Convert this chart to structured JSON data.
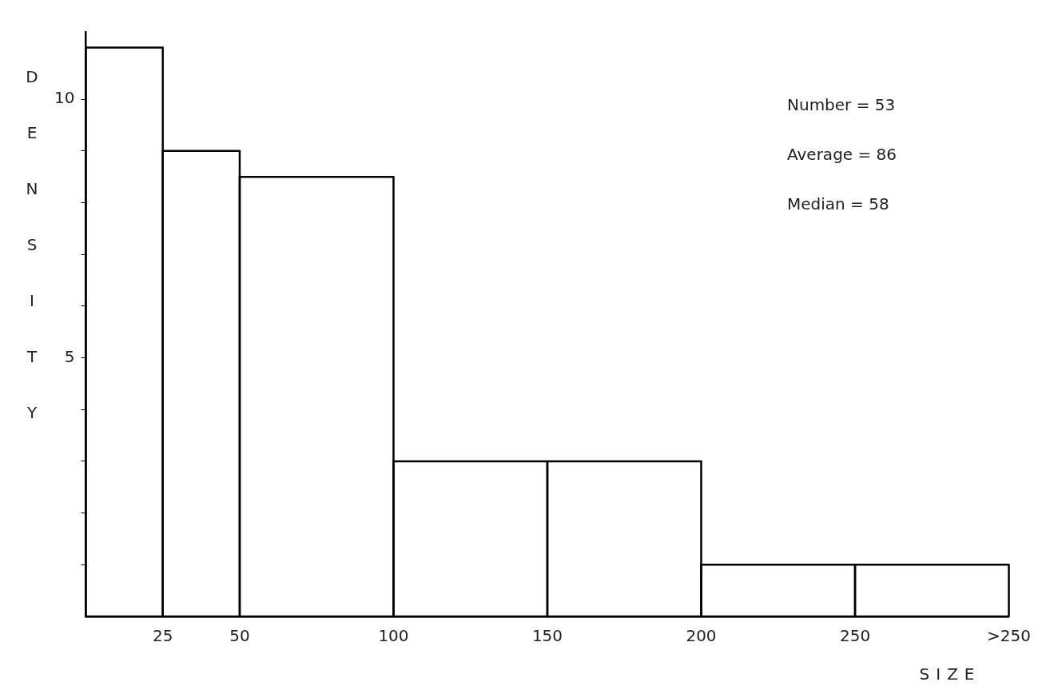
{
  "chart_data": {
    "type": "histogram",
    "xlabel": "SIZE",
    "ylabel": "DENSITY",
    "bins": [
      0,
      25,
      50,
      100,
      150,
      200,
      250,
      300
    ],
    "values": [
      11,
      9,
      8.5,
      3,
      3,
      1,
      1
    ],
    "color": "#000000",
    "xlim": [
      0,
      300
    ],
    "ylim": [
      0,
      11.3
    ],
    "xticks": [
      25,
      50,
      100,
      150,
      200,
      250,
      {
        "value": 300,
        "label": ">250"
      }
    ],
    "yticks": [
      {
        "value": 1,
        "label": null
      },
      {
        "value": 2,
        "label": null
      },
      {
        "value": 3,
        "label": null
      },
      {
        "value": 4,
        "label": null
      },
      5,
      {
        "value": 6,
        "label": null
      },
      {
        "value": 7,
        "label": null
      },
      {
        "value": 8,
        "label": null
      },
      {
        "value": 9,
        "label": null
      },
      10
    ],
    "annotations": [
      "Number = 53",
      "Average = 86",
      "Median = 58"
    ],
    "grid": false,
    "legend": false
  }
}
